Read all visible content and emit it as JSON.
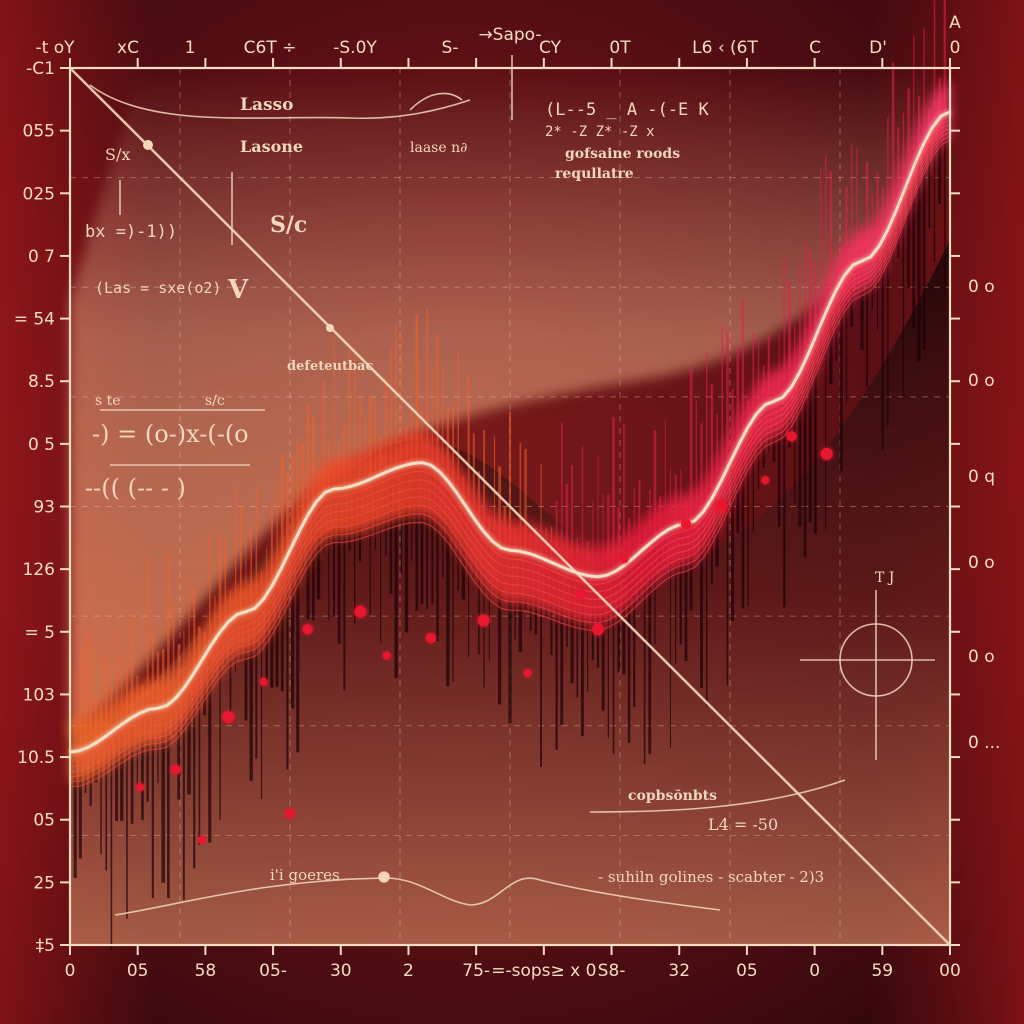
{
  "chart_data": {
    "type": "scatter",
    "title": "",
    "xlabel": "",
    "ylabel": "",
    "x_tick_labels": [
      "0",
      "05",
      "58",
      "05-",
      "30",
      "2",
      "75-",
      "=-sops≥ x 0",
      "S8-",
      "32",
      "05",
      "0",
      "59",
      "00"
    ],
    "y_tick_labels_left": [
      "-C1",
      "055",
      "025",
      "0 7",
      "= 54",
      "8.5",
      "0 5",
      "93",
      "126",
      "= 5",
      "103",
      "10.5",
      "05",
      "25",
      "‡5"
    ],
    "y_tick_labels_right": [
      "0 o",
      "0 o",
      "0 q",
      "0 o",
      "0 o",
      "0 ..."
    ],
    "top_labels": [
      "-t oY",
      "xC",
      "1",
      "C6T ÷",
      "-S.0Y",
      "S-",
      "→Sapo-",
      "CY",
      "0T",
      "L6 ‹ (6T",
      "C",
      "D'",
      "A",
      "0"
    ],
    "curve_label_points": {
      "x": [
        0.0,
        0.1,
        0.2,
        0.3,
        0.4,
        0.5,
        0.6,
        0.7,
        0.8,
        0.9,
        1.0
      ],
      "y": [
        0.22,
        0.27,
        0.38,
        0.52,
        0.55,
        0.45,
        0.42,
        0.48,
        0.62,
        0.78,
        0.95
      ]
    },
    "scatter_points": {
      "x": [
        0.08,
        0.12,
        0.18,
        0.22,
        0.27,
        0.33,
        0.36,
        0.41,
        0.47,
        0.52,
        0.58,
        0.6,
        0.63,
        0.7,
        0.74,
        0.79,
        0.82,
        0.86,
        0.15,
        0.25
      ],
      "y": [
        0.18,
        0.2,
        0.26,
        0.3,
        0.36,
        0.38,
        0.33,
        0.35,
        0.37,
        0.31,
        0.4,
        0.36,
        0.44,
        0.48,
        0.5,
        0.53,
        0.58,
        0.56,
        0.12,
        0.15
      ]
    },
    "grid": true,
    "legend": "none"
  },
  "annotations": {
    "lasso": "Lasso",
    "lasone": "Lasone",
    "laase": "laase n∂",
    "gofsaine": "gofsaine roods",
    "requllatre": "requllatre",
    "defeteutbac": "defeteutbac",
    "copbsonbts": "copbsŏnbts",
    "goeres": "i'i goeres",
    "suhiln": "- suhiln golines - scabter - 2)3",
    "bx_expr": "bx =)-1))",
    "las_expr": "(Las = sxe(o2)",
    "frac_s_x": "S/x",
    "eq_big": "-) = (o-)x-(-(o",
    "eq_big2": "--(( (-- - )",
    "l4": "L4 = -50",
    "sc": "S/c",
    "v_label": "V",
    "ste": "s te",
    "svc": "s/c",
    "tj": "T J",
    "formula_top": "(L--5 _ A -(-E K",
    "formula_top2": "2* -Z  Z* -Z  x"
  },
  "colors": {
    "background_dark": "#1a0508",
    "accent_red": "#d4202e",
    "accent_orange": "#f27a32",
    "cream": "#f8e1c4",
    "pink": "#ff3c6e"
  }
}
